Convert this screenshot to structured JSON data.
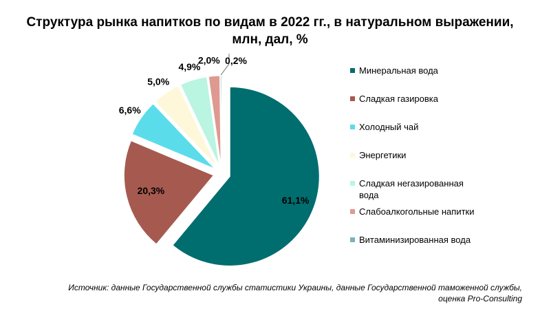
{
  "chart_data": {
    "type": "pie",
    "title_lines": [
      "Структура рынка напитков по видам в 2022 гг., в натуральном выражении,",
      "млн, дал, %"
    ],
    "slices": [
      {
        "name": "Минеральная вода",
        "value": 61.1,
        "label": "61,1%",
        "color": "#006D6F"
      },
      {
        "name": "Сладкая газировка",
        "value": 20.3,
        "label": "20,3%",
        "color": "#A65A4F"
      },
      {
        "name": "Холодный  чай",
        "value": 6.6,
        "label": "6,6%",
        "color": "#5BDCEB"
      },
      {
        "name": "Энергетики",
        "value": 5.0,
        "label": "5,0%",
        "color": "#FFF7DA"
      },
      {
        "name": "Сладкая негазированная вода",
        "value": 4.9,
        "label": "4,9%",
        "color": "#B9F5E1"
      },
      {
        "name": "Слабоалкогольные напитки",
        "value": 2.0,
        "label": "2,0%",
        "color": "#DE9A90"
      },
      {
        "name": "Витаминизированная вода",
        "value": 0.2,
        "label": "0,2%",
        "color": "#76B5B8"
      }
    ],
    "legend_position": "right"
  },
  "source": "Источник: данные Государственной службы статистики Украины, данные Государственной таможенной службы, оценка Pro-Consulting"
}
